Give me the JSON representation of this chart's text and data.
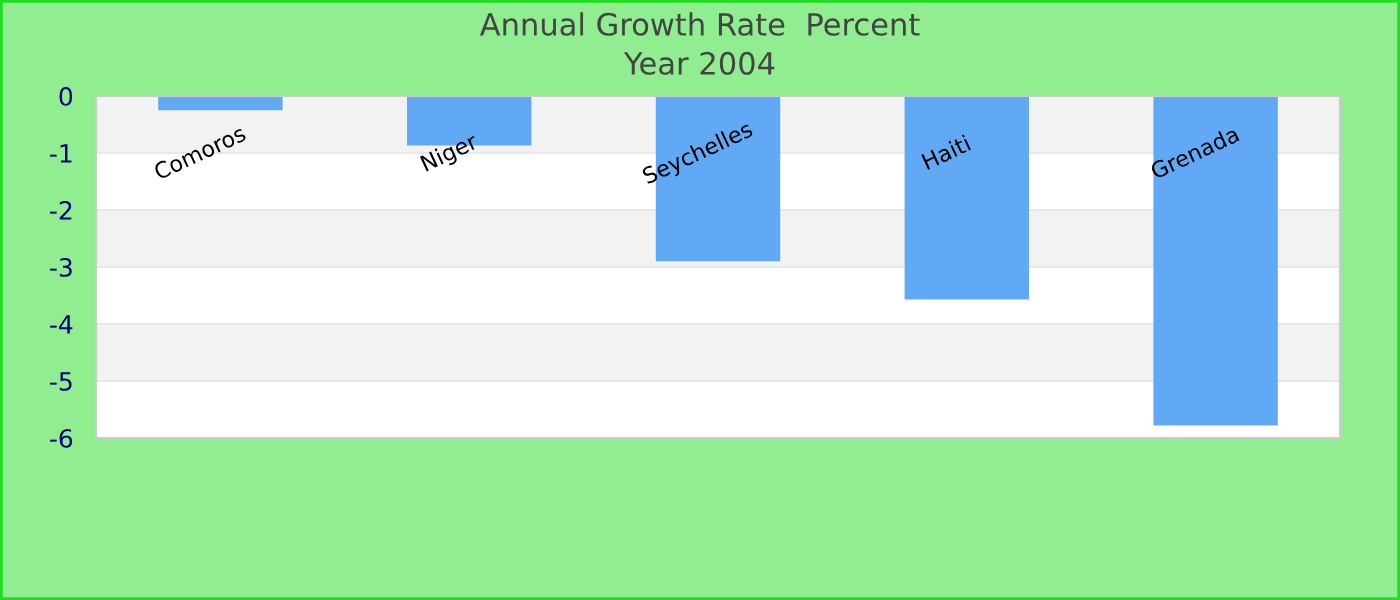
{
  "chart_data": {
    "type": "bar",
    "title": "Annual Growth Rate  Percent",
    "subtitle": "Year 2004",
    "categories": [
      "Comoros",
      "Niger",
      "Seychelles",
      "Haiti",
      "Grenada"
    ],
    "values": [
      -0.25,
      -0.87,
      -2.9,
      -3.57,
      -5.78
    ],
    "color": "#62a9f5",
    "ylim": [
      -6,
      0
    ],
    "yticks": [
      0,
      -1,
      -2,
      -3,
      -4,
      -5,
      -6
    ],
    "grid": "y"
  }
}
